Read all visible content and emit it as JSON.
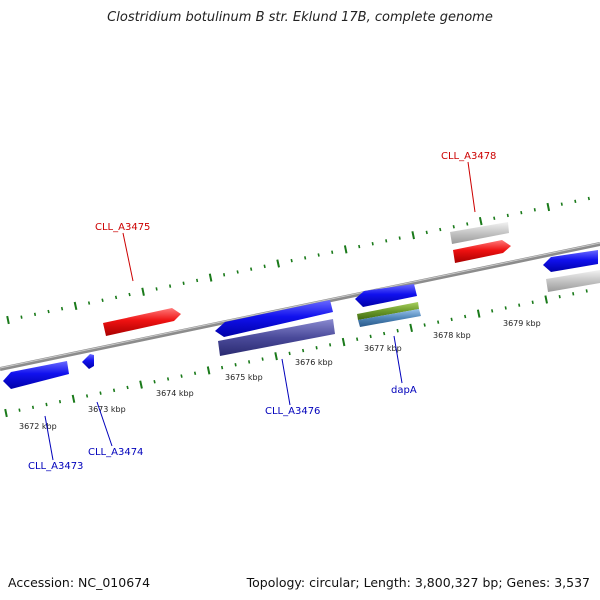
{
  "title": "Clostridium botulinum B str. Eklund 17B, complete genome",
  "footer": {
    "accession": "Accession: NC_010674",
    "summary": "Topology: circular; Length: 3,800,327 bp; Genes: 3,537"
  },
  "axis": {
    "tick_labels": [
      "3672 kbp",
      "3673 kbp",
      "3674 kbp",
      "3675 kbp",
      "3676 kbp",
      "3677 kbp",
      "3678 kbp",
      "3679 kbp"
    ]
  },
  "genes": {
    "plus_strand": [
      "CLL_A3475",
      "CLL_A3478"
    ],
    "minus_strand": [
      "CLL_A3473",
      "CLL_A3474",
      "CLL_A3476",
      "dapA"
    ]
  },
  "colors": {
    "plus_gene": "#ee1111",
    "minus_gene": "#1111ee",
    "plus_label": "#cc0000",
    "minus_label": "#0000bb",
    "backbone": "#8c8c8c",
    "tick_green": "#1a7a1a",
    "feature_grey": "#bdbdbd",
    "feature_purple": "#4a4a9a",
    "feature_olive": "#6b9a2a",
    "feature_steel": "#4f85b8"
  }
}
